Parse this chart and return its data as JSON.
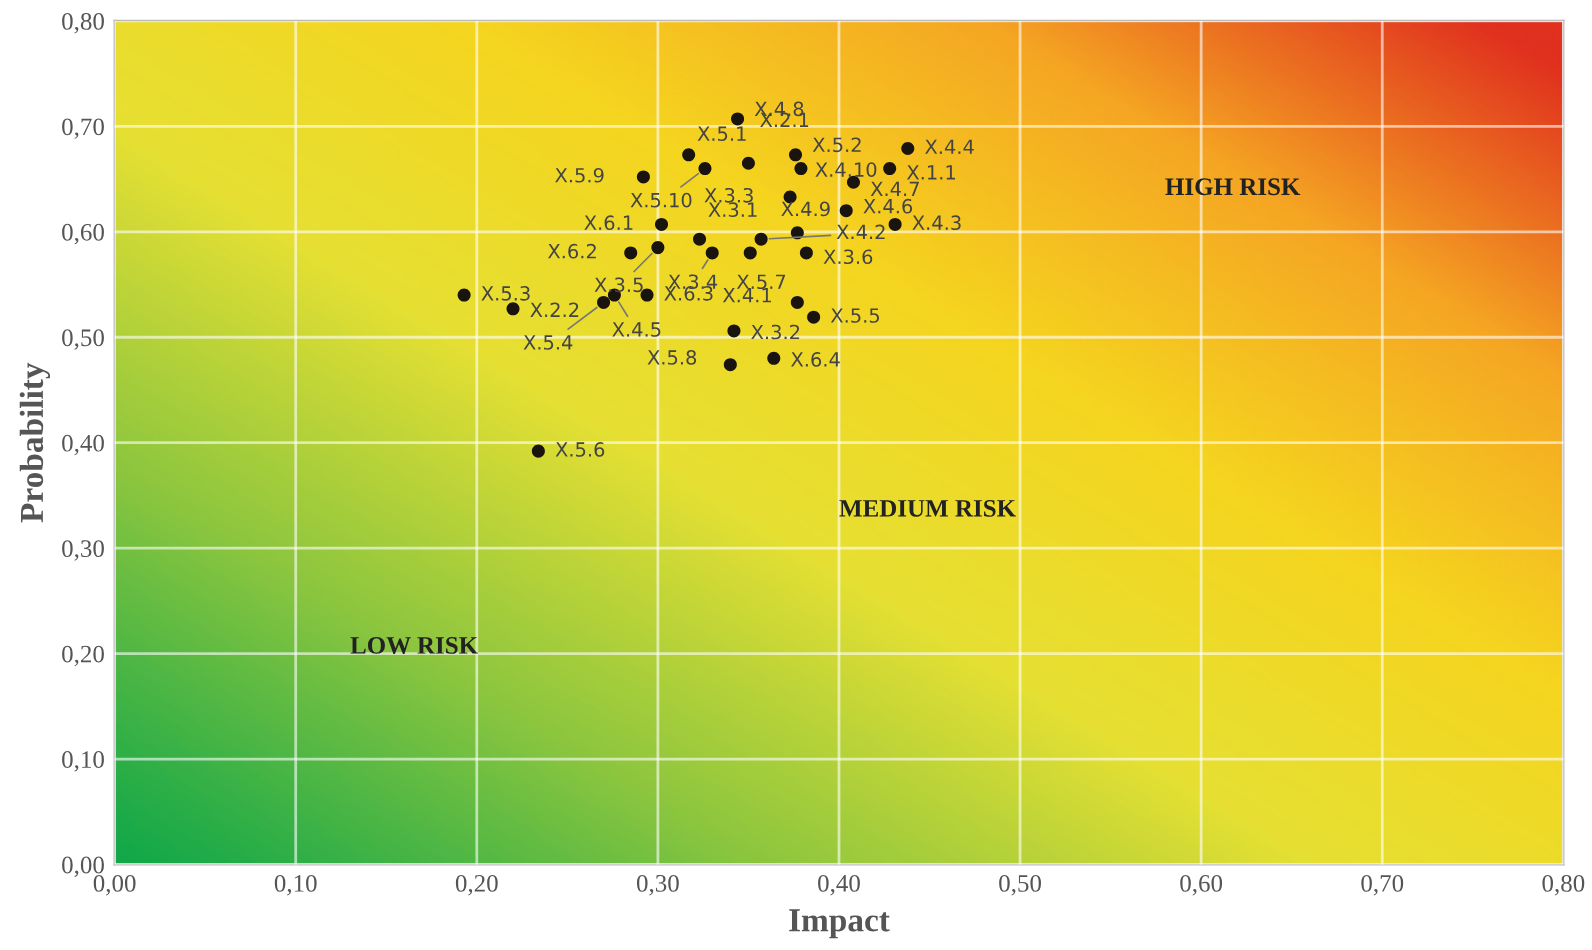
{
  "chart_data": {
    "type": "scatter",
    "xlabel": "Impact",
    "ylabel": "Probability",
    "annotations": [
      "HIGH RISK",
      "MEDIUM RISK",
      "LOW RISK"
    ],
    "xlim": [
      0,
      0.8
    ],
    "ylim": [
      0,
      0.8
    ],
    "xticks": [
      {
        "value": 0,
        "label": "0,00"
      },
      {
        "value": 0.1,
        "label": "0,10"
      },
      {
        "value": 0.2,
        "label": "0,20"
      },
      {
        "value": 0.3,
        "label": "0,30"
      },
      {
        "value": 0.4,
        "label": "0,40"
      },
      {
        "value": 0.5,
        "label": "0,50"
      },
      {
        "value": 0.6,
        "label": "0,60"
      },
      {
        "value": 0.7,
        "label": "0,70"
      },
      {
        "value": 0.8,
        "label": "0,80"
      }
    ],
    "yticks": [
      {
        "value": 0,
        "label": "0,00"
      },
      {
        "value": 0.1,
        "label": "0,10"
      },
      {
        "value": 0.2,
        "label": "0,20"
      },
      {
        "value": 0.3,
        "label": "0,30"
      },
      {
        "value": 0.4,
        "label": "0,40"
      },
      {
        "value": 0.5,
        "label": "0,50"
      },
      {
        "value": 0.6,
        "label": "0,60"
      },
      {
        "value": 0.7,
        "label": "0,70"
      },
      {
        "value": 0.8,
        "label": "0,80"
      }
    ],
    "grid": true,
    "marker": "circle",
    "series": [
      {
        "color": "#1a1410",
        "x": [
          0.344,
          0.317,
          0.35,
          0.376,
          0.438,
          0.292,
          0.326,
          0.379,
          0.428,
          0.373,
          0.408,
          0.302,
          0.323,
          0.33,
          0.377,
          0.404,
          0.357,
          0.431,
          0.285,
          0.3,
          0.351,
          0.382,
          0.193,
          0.22,
          0.276,
          0.294,
          0.27,
          0.377,
          0.386,
          0.342,
          0.34,
          0.364,
          0.234
        ],
        "values": [
          0.707,
          0.673,
          0.665,
          0.673,
          0.679,
          0.652,
          0.66,
          0.66,
          0.66,
          0.633,
          0.647,
          0.607,
          0.593,
          0.58,
          0.599,
          0.62,
          0.593,
          0.607,
          0.58,
          0.585,
          0.58,
          0.58,
          0.54,
          0.527,
          0.54,
          0.54,
          0.533,
          0.533,
          0.519,
          0.506,
          0.474,
          0.48,
          0.392
        ],
        "value_labels": [
          "X.4.8",
          "X.5.1",
          "X.2.1",
          "X.5.2",
          "X.4.4",
          "X.5.9",
          "X.5.10",
          "X.4.10",
          "X.1.1",
          "X.3.3",
          "X.4.7",
          "X.6.1",
          "X.3.1",
          "X.3.4",
          "X.4.9",
          "X.4.6",
          "X.4.2",
          "X.4.3",
          "X.6.2",
          "X.3.5",
          "X.5.7",
          "X.3.6",
          "X.5.3",
          "X.2.2",
          "X.4.5",
          "X.6.3",
          "X.5.4",
          "X.4.1",
          "X.5.5",
          "X.3.2",
          "X.5.8",
          "X.6.4",
          "X.5.6"
        ]
      }
    ]
  }
}
